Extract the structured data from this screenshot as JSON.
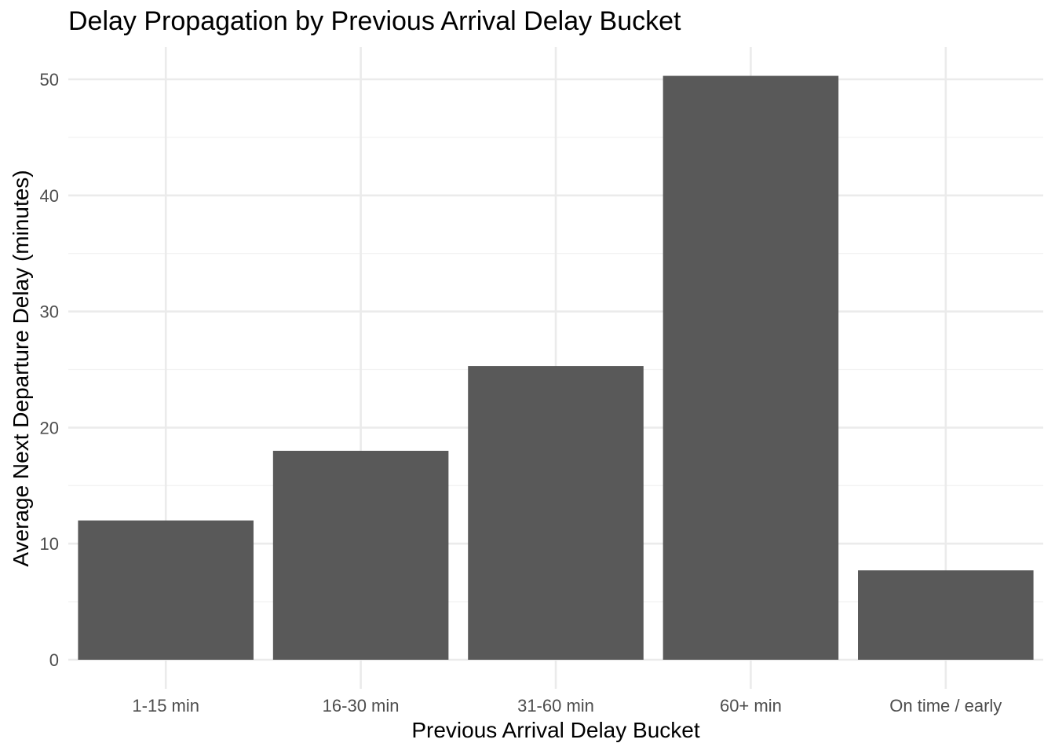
{
  "chart_data": {
    "type": "bar",
    "title": "Delay Propagation by Previous Arrival Delay Bucket",
    "xlabel": "Previous Arrival Delay Bucket",
    "ylabel": "Average Next Departure Delay (minutes)",
    "categories": [
      "1-15 min",
      "16-30 min",
      "31-60 min",
      "60+ min",
      "On time / early"
    ],
    "values": [
      12.0,
      18.0,
      25.3,
      50.3,
      7.7
    ],
    "ylim": [
      -2.5,
      52.8
    ],
    "yticks": [
      0,
      10,
      20,
      30,
      40,
      50
    ],
    "grid": true,
    "bar_color": "#595959"
  }
}
